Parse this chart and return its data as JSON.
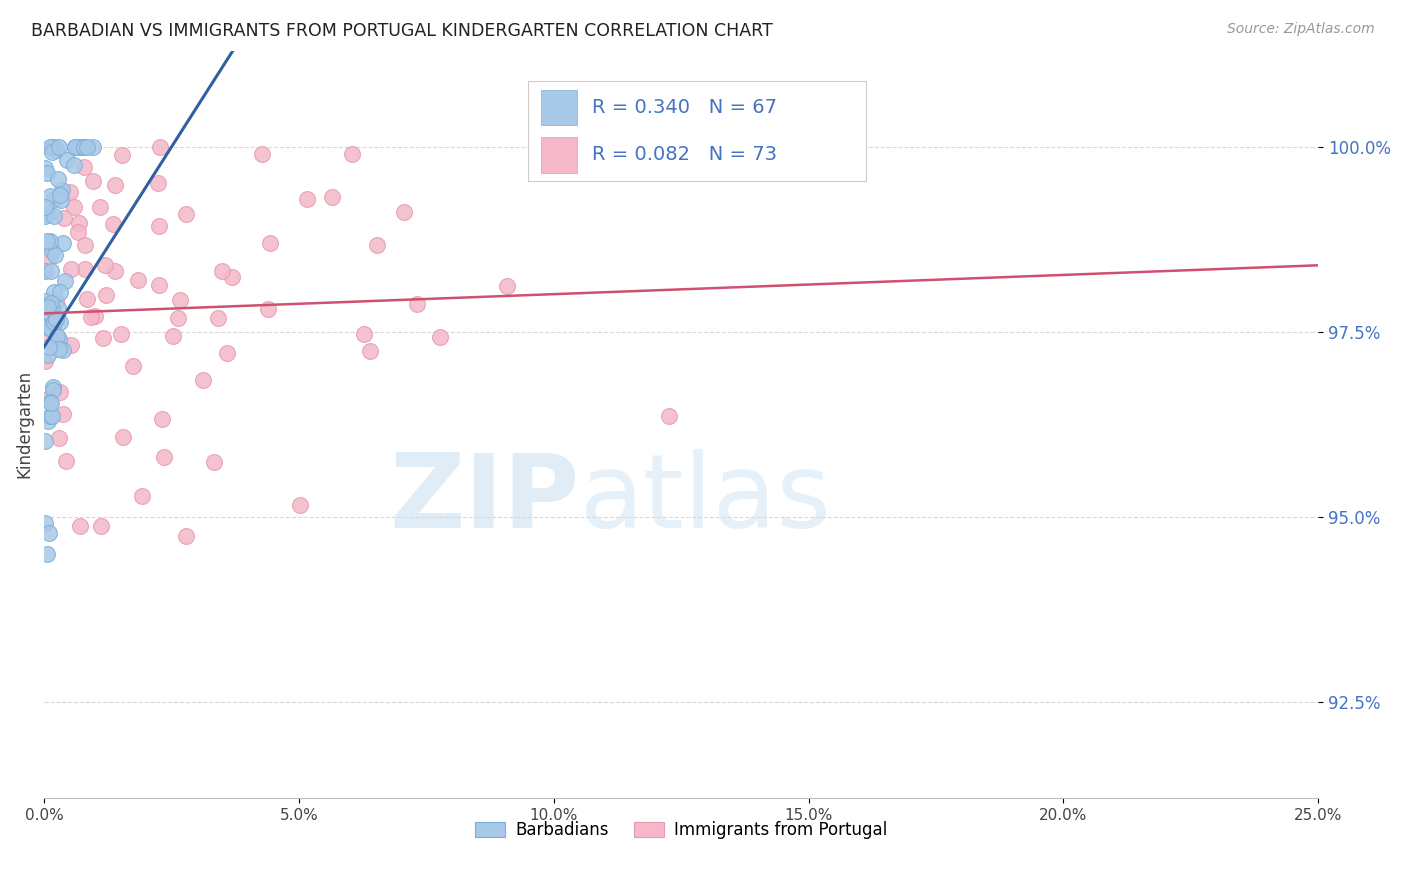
{
  "title": "BARBADIAN VS IMMIGRANTS FROM PORTUGAL KINDERGARTEN CORRELATION CHART",
  "source": "Source: ZipAtlas.com",
  "ylabel": "Kindergarten",
  "ytick_vals": [
    92.5,
    95.0,
    97.5,
    100.0
  ],
  "xrange": [
    0.0,
    25.0
  ],
  "yrange": [
    91.2,
    101.3
  ],
  "R_blue": 0.34,
  "N_blue": 67,
  "R_pink": 0.082,
  "N_pink": 73,
  "blue_color": "#a8c8e8",
  "blue_edge": "#7ab0d8",
  "pink_color": "#f4b8c8",
  "pink_edge": "#e898b0",
  "trendline_blue": "#3060a0",
  "trendline_pink": "#d05070",
  "legend_label_blue": "Barbadians",
  "legend_label_pink": "Immigrants from Portugal",
  "watermark_color": "#d8eef8",
  "title_color": "#222222",
  "source_color": "#999999",
  "ytick_color": "#4472C4",
  "grid_color": "#d8d8d8"
}
